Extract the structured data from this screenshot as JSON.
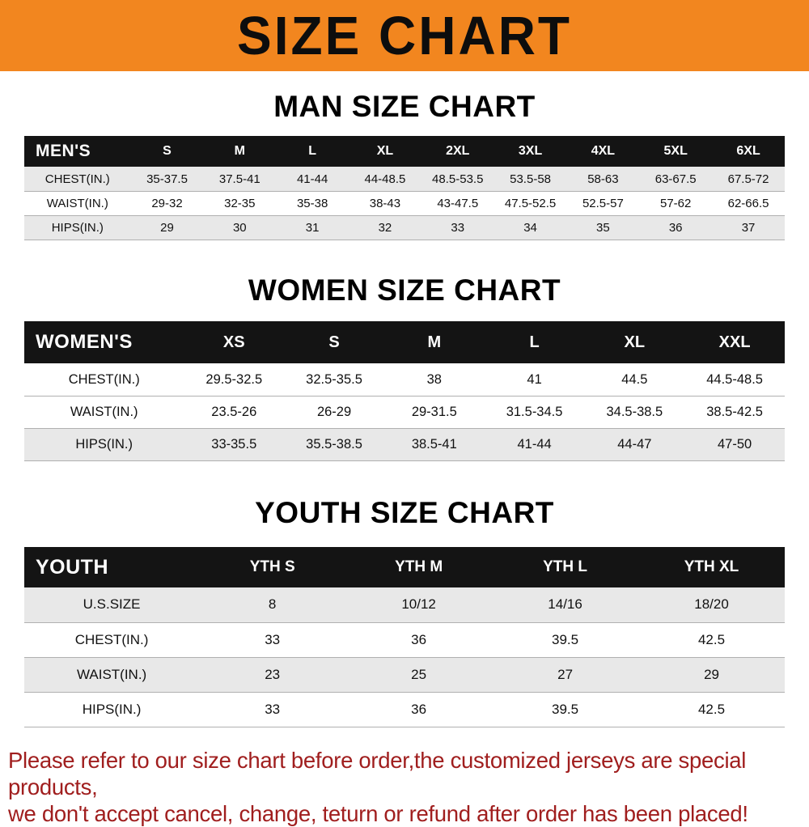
{
  "banner": {
    "title": "SIZE CHART",
    "bg_color": "#f2861f",
    "text_color": "#0d0d0d"
  },
  "colors": {
    "header_row_bg": "#141414",
    "header_row_text": "#ffffff",
    "shaded_row_bg": "#e8e8e8",
    "row_border": "#b0b0b0",
    "notice_text": "#a01e1e"
  },
  "sections": [
    {
      "id": "men",
      "heading": "MAN SIZE CHART",
      "table": {
        "header": [
          "MEN'S",
          "S",
          "M",
          "L",
          "XL",
          "2XL",
          "3XL",
          "4XL",
          "5XL",
          "6XL"
        ],
        "rows": [
          {
            "label": "CHEST(IN.)",
            "shaded": true,
            "values": [
              "35-37.5",
              "37.5-41",
              "41-44",
              "44-48.5",
              "48.5-53.5",
              "53.5-58",
              "58-63",
              "63-67.5",
              "67.5-72"
            ]
          },
          {
            "label": "WAIST(IN.)",
            "shaded": false,
            "values": [
              "29-32",
              "32-35",
              "35-38",
              "38-43",
              "43-47.5",
              "47.5-52.5",
              "52.5-57",
              "57-62",
              "62-66.5"
            ]
          },
          {
            "label": "HIPS(IN.)",
            "shaded": true,
            "values": [
              "29",
              "30",
              "31",
              "32",
              "33",
              "34",
              "35",
              "36",
              "37"
            ]
          }
        ]
      }
    },
    {
      "id": "women",
      "heading": "WOMEN SIZE CHART",
      "table": {
        "header": [
          "WOMEN'S",
          "XS",
          "S",
          "M",
          "L",
          "XL",
          "XXL"
        ],
        "rows": [
          {
            "label": "CHEST(IN.)",
            "shaded": false,
            "values": [
              "29.5-32.5",
              "32.5-35.5",
              "38",
              "41",
              "44.5",
              "44.5-48.5"
            ]
          },
          {
            "label": "WAIST(IN.)",
            "shaded": false,
            "values": [
              "23.5-26",
              "26-29",
              "29-31.5",
              "31.5-34.5",
              "34.5-38.5",
              "38.5-42.5"
            ]
          },
          {
            "label": "HIPS(IN.)",
            "shaded": true,
            "values": [
              "33-35.5",
              "35.5-38.5",
              "38.5-41",
              "41-44",
              "44-47",
              "47-50"
            ]
          }
        ]
      }
    },
    {
      "id": "youth",
      "heading": "YOUTH SIZE CHART",
      "table": {
        "header": [
          "YOUTH",
          "YTH S",
          "YTH M",
          "YTH L",
          "YTH XL"
        ],
        "rows": [
          {
            "label": "U.S.SIZE",
            "shaded": true,
            "values": [
              "8",
              "10/12",
              "14/16",
              "18/20"
            ]
          },
          {
            "label": "CHEST(IN.)",
            "shaded": false,
            "values": [
              "33",
              "36",
              "39.5",
              "42.5"
            ]
          },
          {
            "label": "WAIST(IN.)",
            "shaded": true,
            "values": [
              "23",
              "25",
              "27",
              "29"
            ]
          },
          {
            "label": "HIPS(IN.)",
            "shaded": false,
            "values": [
              "33",
              "36",
              "39.5",
              "42.5"
            ]
          }
        ]
      }
    }
  ],
  "footer": {
    "line1": "Please refer to our size chart before order,the customized jerseys are special products,",
    "line2": "we don't accept cancel, change, teturn or refund after order has been placed!"
  }
}
